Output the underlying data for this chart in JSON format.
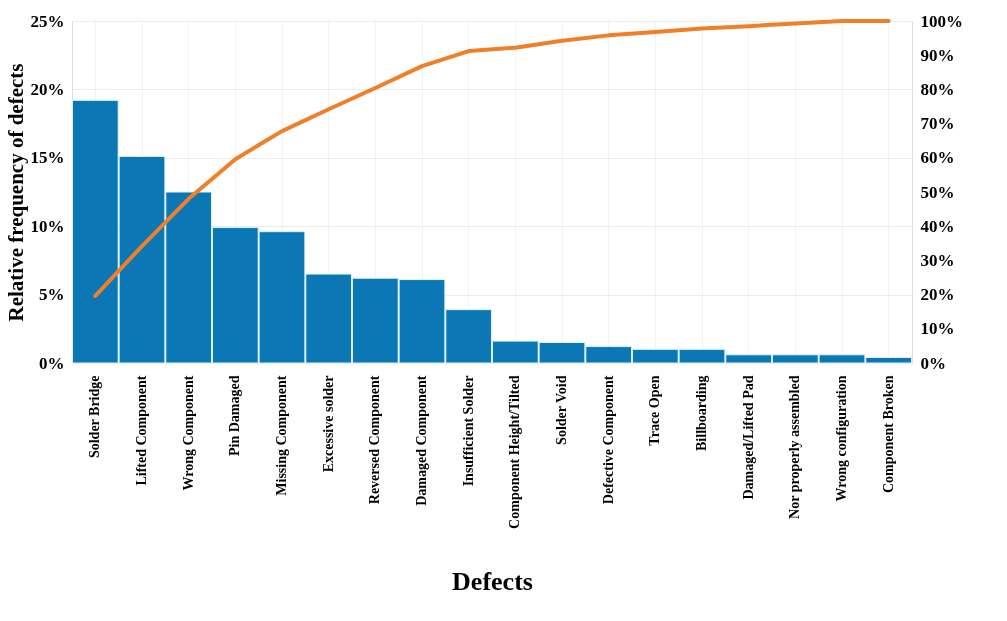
{
  "chart_data": {
    "type": "bar",
    "xlabel": "Defects",
    "ylabel": "Relative frequency of defects",
    "categories": [
      "Solder Bridge",
      "Lifted Component",
      "Wrong Component",
      "Pin Damaged",
      "Missing Component",
      "Excessive solder",
      "Reversed Component",
      "Damaged Component",
      "Insufficient Solder",
      "Component Height/Tilted",
      "Solder Void",
      "Defective Component",
      "Trace Open",
      "Billboarding",
      "Damaged/Lifted Pad",
      "Nor properly assembled",
      "Wrong configuration",
      "Component Broken"
    ],
    "series": [
      {
        "color": "#0b77b4",
        "values": [
          19.2,
          15.1,
          12.5,
          9.9,
          9.6,
          6.5,
          6.2,
          6.1,
          3.9,
          1.6,
          1.5,
          1.2,
          1.0,
          1.0,
          0.6,
          0.6,
          0.6,
          0.4
        ]
      },
      {
        "type": "line",
        "axis": "y2",
        "color": "#f07f2a",
        "values": [
          19.6,
          34.2,
          48,
          59.6,
          67.8,
          74.2,
          80.4,
          86.8,
          91.2,
          92.2,
          94.2,
          95.8,
          96.8,
          97.8,
          98.5,
          99.3,
          100,
          100
        ]
      }
    ],
    "ylim": [
      0,
      25
    ],
    "yticks": [
      {
        "value": 0,
        "label": "0%"
      },
      {
        "value": 5,
        "label": "5%"
      },
      {
        "value": 10,
        "label": "10%"
      },
      {
        "value": 15,
        "label": "15%"
      },
      {
        "value": 20,
        "label": "20%"
      },
      {
        "value": 25,
        "label": "25%"
      }
    ],
    "y2lim": [
      0,
      100
    ],
    "y2ticks": [
      {
        "value": 0,
        "label": "0%"
      },
      {
        "value": 10,
        "label": "10%"
      },
      {
        "value": 20,
        "label": "20%"
      },
      {
        "value": 30,
        "label": "30%"
      },
      {
        "value": 40,
        "label": "40%"
      },
      {
        "value": 50,
        "label": "50%"
      },
      {
        "value": 60,
        "label": "60%"
      },
      {
        "value": 70,
        "label": "70%"
      },
      {
        "value": 80,
        "label": "80%"
      },
      {
        "value": 90,
        "label": "90%"
      },
      {
        "value": 100,
        "label": "100%"
      }
    ],
    "grid": true,
    "marker": "none",
    "line_style": "solid"
  }
}
